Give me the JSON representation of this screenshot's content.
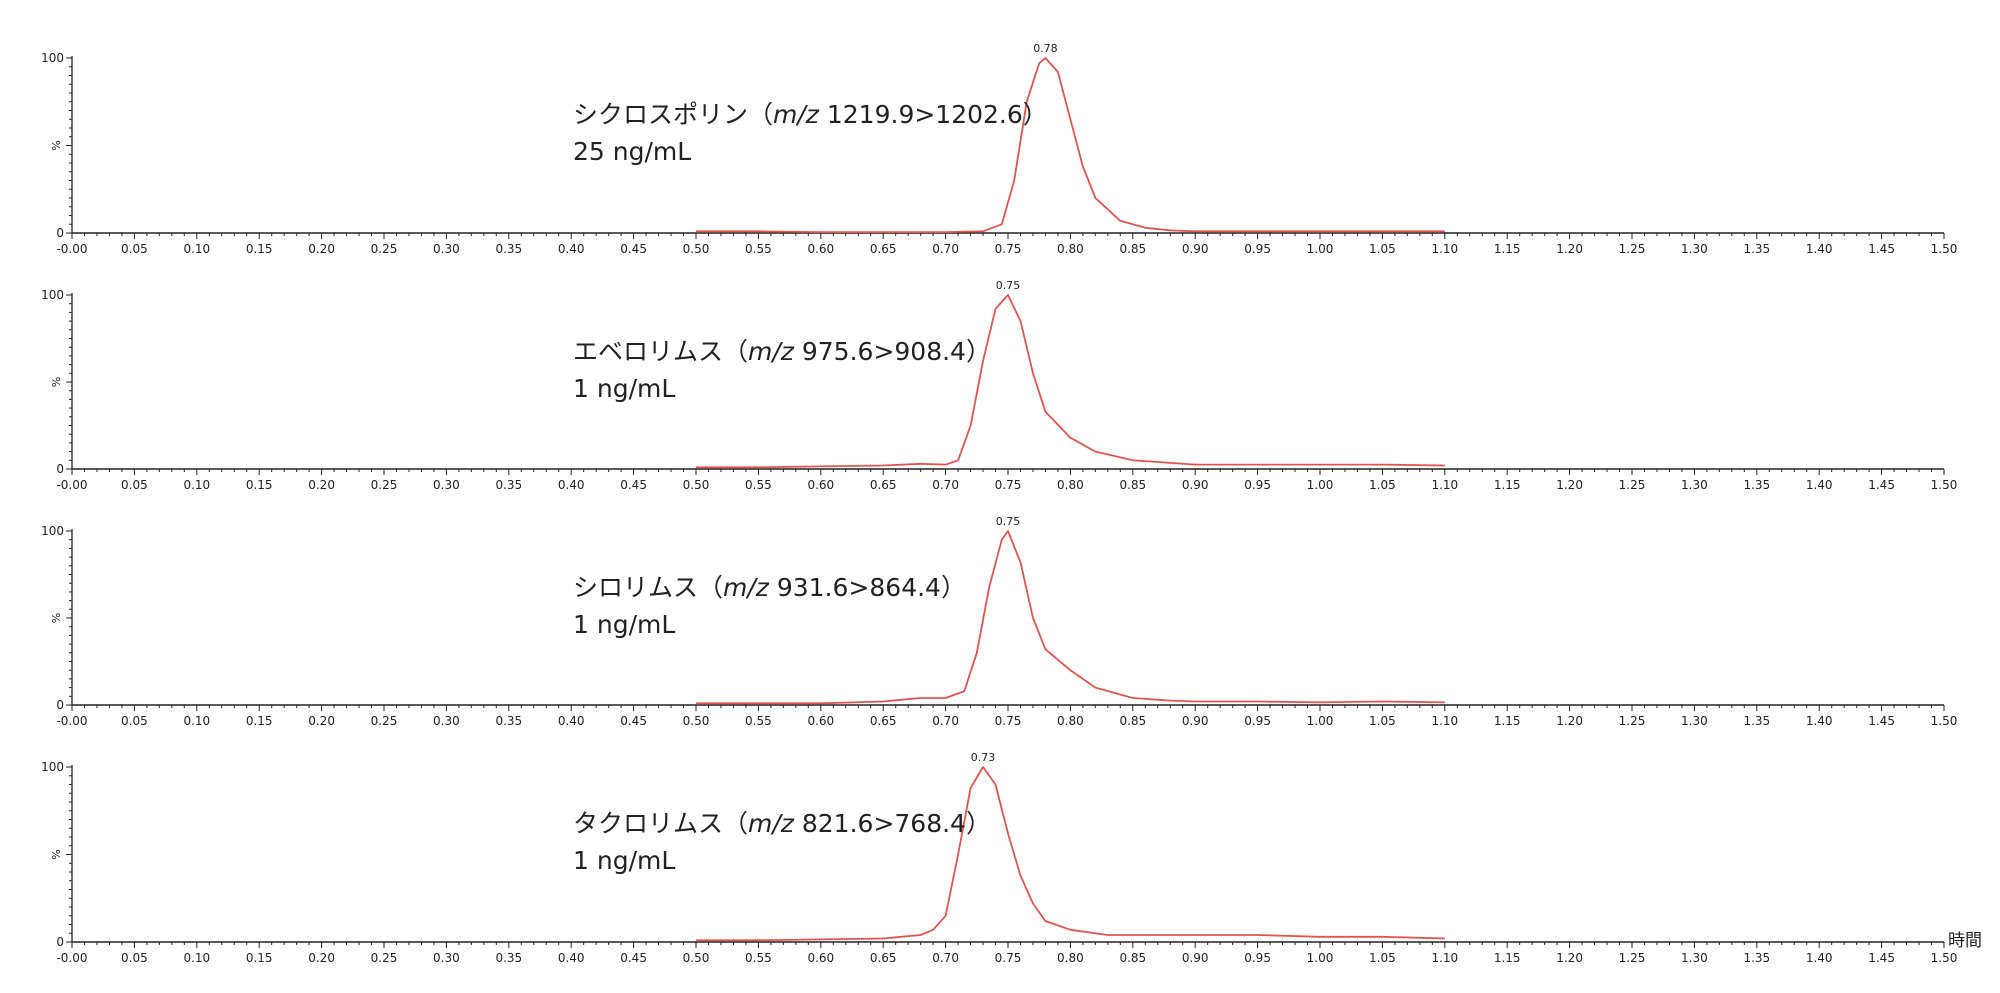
{
  "x_unit": "時間",
  "chart_data": [
    {
      "type": "line",
      "ylabel": "%",
      "xlim": [
        0.0,
        1.5
      ],
      "ylim": [
        0,
        100
      ],
      "yticks": [
        "0",
        "100"
      ],
      "xticks": [
        "-0.00",
        "0.05",
        "0.10",
        "0.15",
        "0.20",
        "0.25",
        "0.30",
        "0.35",
        "0.40",
        "0.45",
        "0.50",
        "0.55",
        "0.60",
        "0.65",
        "0.70",
        "0.75",
        "0.80",
        "0.85",
        "0.90",
        "0.95",
        "1.00",
        "1.05",
        "1.10",
        "1.15",
        "1.20",
        "1.25",
        "1.30",
        "1.35",
        "1.40",
        "1.45",
        "1.50"
      ],
      "annotation": {
        "name": "シクロスポリン（",
        "mz_label": "m/z",
        "transition": " 1219.9>1202.6）",
        "concentration": "25 ng/mL"
      },
      "peak_label": "0.78",
      "series": [
        {
          "color": "#e05550",
          "x": [
            0.5,
            0.55,
            0.6,
            0.65,
            0.7,
            0.73,
            0.745,
            0.755,
            0.765,
            0.775,
            0.78,
            0.79,
            0.8,
            0.81,
            0.82,
            0.84,
            0.86,
            0.88,
            0.9,
            0.95,
            1.0,
            1.05,
            1.1
          ],
          "y": [
            1,
            1,
            0.5,
            0.5,
            0.5,
            1,
            5,
            30,
            75,
            97,
            100,
            92,
            65,
            38,
            20,
            7,
            3,
            1.5,
            1,
            1,
            1,
            1,
            1
          ]
        }
      ]
    },
    {
      "type": "line",
      "ylabel": "%",
      "xlim": [
        0.0,
        1.5
      ],
      "ylim": [
        0,
        100
      ],
      "yticks": [
        "0",
        "100"
      ],
      "xticks": [
        "-0.00",
        "0.05",
        "0.10",
        "0.15",
        "0.20",
        "0.25",
        "0.30",
        "0.35",
        "0.40",
        "0.45",
        "0.50",
        "0.55",
        "0.60",
        "0.65",
        "0.70",
        "0.75",
        "0.80",
        "0.85",
        "0.90",
        "0.95",
        "1.00",
        "1.05",
        "1.10",
        "1.15",
        "1.20",
        "1.25",
        "1.30",
        "1.35",
        "1.40",
        "1.45",
        "1.50"
      ],
      "annotation": {
        "name": "エベロリムス（",
        "mz_label": "m/z",
        "transition": " 975.6>908.4）",
        "concentration": "1 ng/mL"
      },
      "peak_label": "0.75",
      "series": [
        {
          "color": "#e05550",
          "x": [
            0.5,
            0.55,
            0.6,
            0.65,
            0.68,
            0.7,
            0.71,
            0.72,
            0.73,
            0.74,
            0.75,
            0.76,
            0.77,
            0.78,
            0.8,
            0.82,
            0.85,
            0.88,
            0.9,
            0.95,
            1.0,
            1.05,
            1.1
          ],
          "y": [
            1,
            1,
            1.5,
            2,
            3,
            2.5,
            5,
            25,
            62,
            92,
            100,
            85,
            55,
            33,
            18,
            10,
            5,
            3.5,
            2.5,
            2.5,
            2.5,
            2.5,
            2
          ]
        }
      ]
    },
    {
      "type": "line",
      "ylabel": "%",
      "xlim": [
        0.0,
        1.5
      ],
      "ylim": [
        0,
        100
      ],
      "yticks": [
        "0",
        "100"
      ],
      "xticks": [
        "-0.00",
        "0.05",
        "0.10",
        "0.15",
        "0.20",
        "0.25",
        "0.30",
        "0.35",
        "0.40",
        "0.45",
        "0.50",
        "0.55",
        "0.60",
        "0.65",
        "0.70",
        "0.75",
        "0.80",
        "0.85",
        "0.90",
        "0.95",
        "1.00",
        "1.05",
        "1.10",
        "1.15",
        "1.20",
        "1.25",
        "1.30",
        "1.35",
        "1.40",
        "1.45",
        "1.50"
      ],
      "annotation": {
        "name": "シロリムス（",
        "mz_label": "m/z",
        "transition": " 931.6>864.4）",
        "concentration": "1 ng/mL"
      },
      "peak_label": "0.75",
      "series": [
        {
          "color": "#e05550",
          "x": [
            0.5,
            0.55,
            0.6,
            0.65,
            0.68,
            0.7,
            0.715,
            0.725,
            0.735,
            0.745,
            0.75,
            0.76,
            0.77,
            0.78,
            0.8,
            0.82,
            0.85,
            0.88,
            0.9,
            0.95,
            1.0,
            1.05,
            1.1
          ],
          "y": [
            1,
            1,
            1,
            2,
            4,
            4,
            8,
            30,
            68,
            95,
            100,
            82,
            50,
            32,
            20,
            10,
            4,
            2.5,
            2,
            2,
            1.5,
            2,
            1.5
          ]
        }
      ]
    },
    {
      "type": "line",
      "ylabel": "%",
      "xlim": [
        0.0,
        1.5
      ],
      "ylim": [
        0,
        100
      ],
      "yticks": [
        "0",
        "100"
      ],
      "xticks": [
        "-0.00",
        "0.05",
        "0.10",
        "0.15",
        "0.20",
        "0.25",
        "0.30",
        "0.35",
        "0.40",
        "0.45",
        "0.50",
        "0.55",
        "0.60",
        "0.65",
        "0.70",
        "0.75",
        "0.80",
        "0.85",
        "0.90",
        "0.95",
        "1.00",
        "1.05",
        "1.10",
        "1.15",
        "1.20",
        "1.25",
        "1.30",
        "1.35",
        "1.40",
        "1.45",
        "1.50"
      ],
      "annotation": {
        "name": "タクロリムス（",
        "mz_label": "m/z",
        "transition": " 821.6>768.4）",
        "concentration": "1 ng/mL"
      },
      "peak_label": "0.73",
      "series": [
        {
          "color": "#e05550",
          "x": [
            0.5,
            0.55,
            0.6,
            0.65,
            0.68,
            0.69,
            0.7,
            0.71,
            0.72,
            0.73,
            0.74,
            0.75,
            0.76,
            0.77,
            0.78,
            0.8,
            0.83,
            0.85,
            0.9,
            0.95,
            1.0,
            1.05,
            1.1
          ],
          "y": [
            1,
            1,
            1.5,
            2,
            4,
            7,
            15,
            50,
            88,
            100,
            90,
            62,
            38,
            22,
            12,
            7,
            4,
            4,
            4,
            4,
            3,
            3,
            2
          ]
        }
      ]
    }
  ]
}
